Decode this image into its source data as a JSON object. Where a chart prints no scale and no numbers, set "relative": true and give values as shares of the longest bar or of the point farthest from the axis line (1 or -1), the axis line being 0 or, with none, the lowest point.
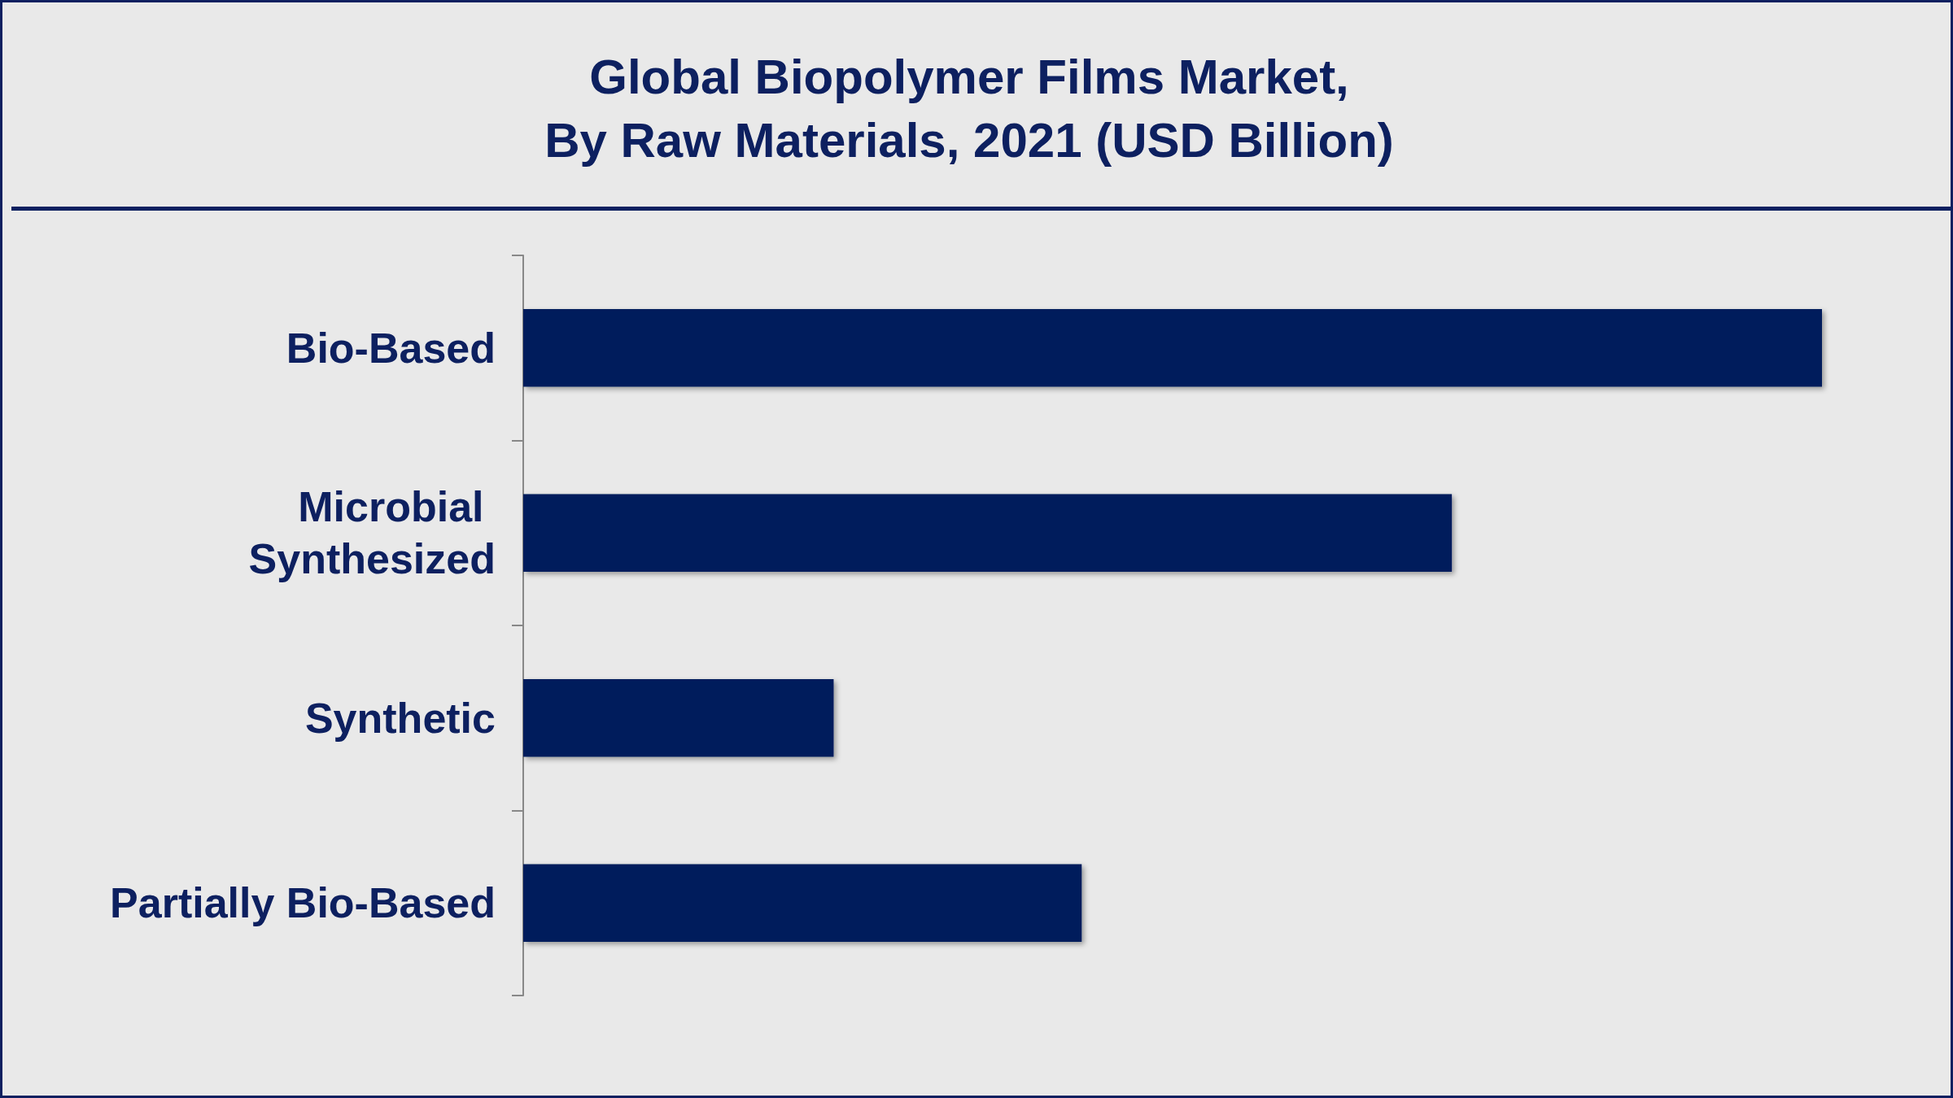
{
  "chart_data": {
    "type": "bar",
    "orientation": "horizontal",
    "relative": true,
    "title": "Global Biopolymer Films Market,\nBy Raw Materials, 2021 (USD Billion)",
    "categories": [
      "Bio-Based",
      "Microbial Synthesized",
      "Synthetic",
      "Partially Bio-Based"
    ],
    "values": [
      1,
      0.715,
      0.239,
      0.43
    ],
    "color": "#001f5b"
  }
}
